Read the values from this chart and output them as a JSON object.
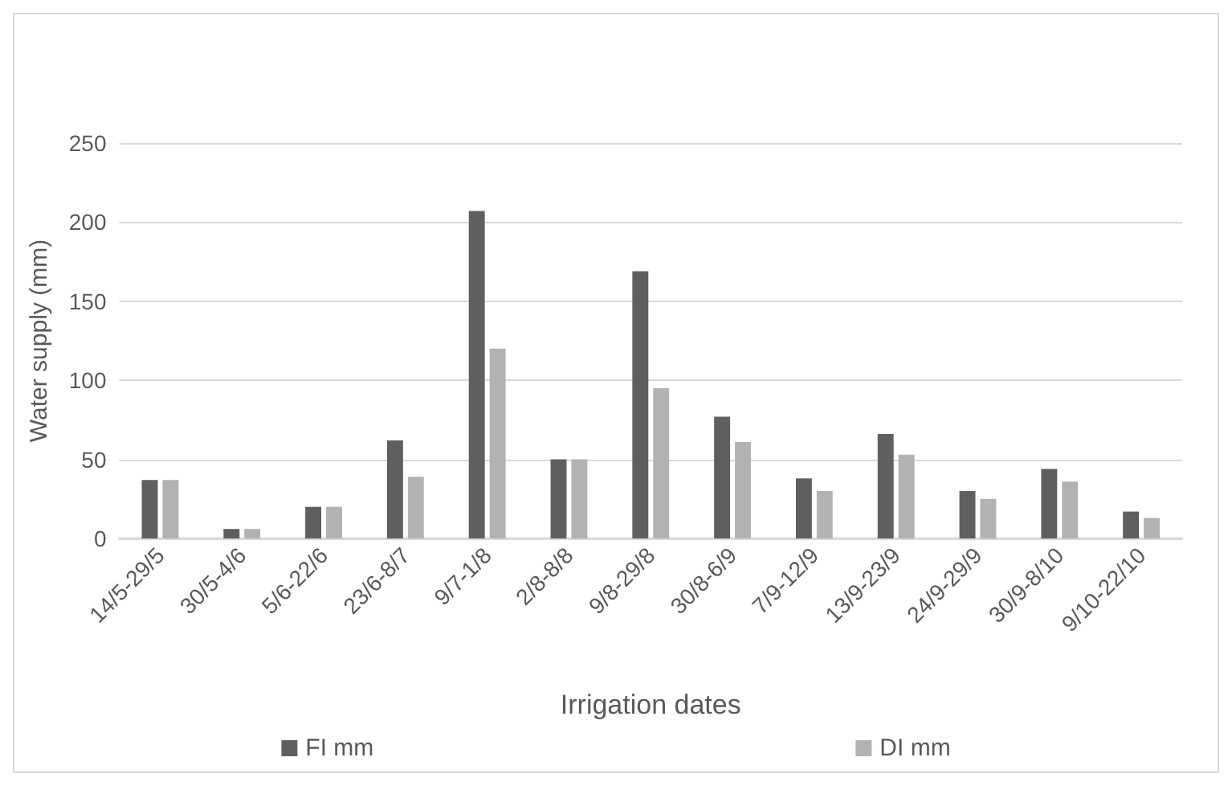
{
  "chart_data": {
    "type": "bar",
    "xlabel": "Irrigation dates",
    "ylabel": "Water supply (mm)",
    "categories": [
      "14/5-29/5",
      "30/5-4/6",
      "5/6-22/6",
      "23/6-8/7",
      "9/7-1/8",
      "2/8-8/8",
      "9/8-29/8",
      "30/8-6/9",
      "7/9-12/9",
      "13/9-23/9",
      "24/9-29/9",
      "30/9-8/10",
      "9/10-22/10"
    ],
    "series": [
      {
        "name": "FI mm",
        "color": "#5f5f5f",
        "values": [
          37,
          6,
          20,
          62,
          207,
          50,
          169,
          77,
          38,
          66,
          30,
          44,
          17
        ]
      },
      {
        "name": "DI mm",
        "color": "#b2b2b2",
        "values": [
          37,
          6,
          20,
          39,
          120,
          50,
          95,
          61,
          30,
          53,
          25,
          36,
          13
        ]
      }
    ],
    "ylim": [
      0,
      250
    ],
    "yticks": [
      0,
      50,
      100,
      150,
      200,
      250
    ],
    "grid": "y",
    "legend": "bottom"
  }
}
